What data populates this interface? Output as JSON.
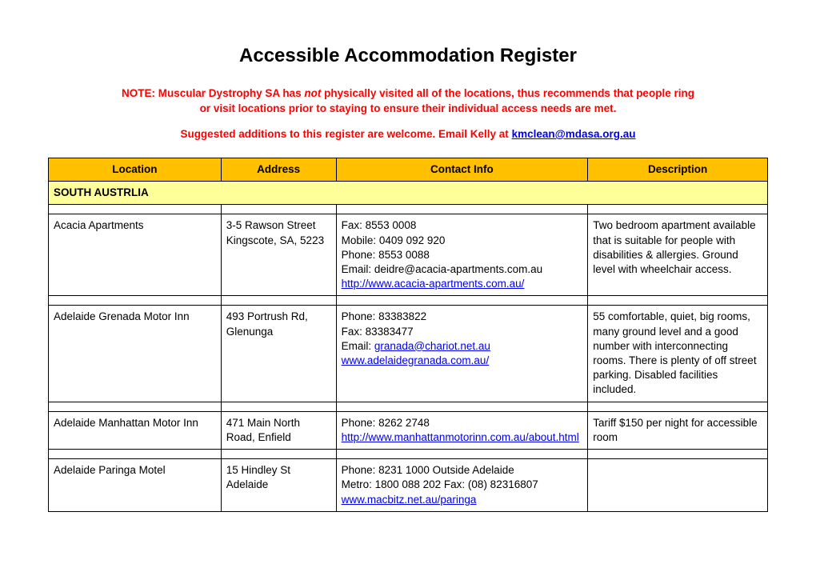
{
  "title": "Accessible Accommodation Register",
  "note_line1": "NOTE: Muscular Dystrophy SA has ",
  "note_not": "not",
  "note_line1b": " physically visited all of the locations, thus recommends that people ring",
  "note_line2": "or visit locations prior to staying to ensure their individual access needs are met.",
  "suggest_prefix": "Suggested additions to this register are welcome. Email Kelly at ",
  "suggest_email": "kmclean@mdasa.org.au",
  "columns": {
    "location": "Location",
    "address": "Address",
    "contact": "Contact Info",
    "description": "Description"
  },
  "region": "SOUTH AUSTRLIA",
  "rows": [
    {
      "location": "Acacia Apartments",
      "address": "3-5 Rawson Street Kingscote, SA, 5223",
      "contact_lines": [
        "Fax: 8553 0008",
        "Mobile: 0409 092 920",
        "Phone: 8553 0088",
        "Email: deidre@acacia-apartments.com.au"
      ],
      "contact_link": "http://www.acacia-apartments.com.au/",
      "description": "Two bedroom apartment available that is suitable for people with disabilities & allergies. Ground level with wheelchair access."
    },
    {
      "location": "Adelaide Grenada Motor Inn",
      "address": "493 Portrush Rd, Glenunga",
      "contact_lines": [
        "Phone: 83383822",
        "Fax: 83383477"
      ],
      "contact_email_prefix": "Email: ",
      "contact_email": "granada@chariot.net.au",
      "contact_link": "www.adelaidegranada.com.au/",
      "description": "55 comfortable, quiet, big rooms, many ground level and a good number with interconnecting rooms. There is plenty of off street parking. Disabled facilities included."
    },
    {
      "location": "Adelaide Manhattan Motor Inn",
      "address": "471 Main North Road, Enfield",
      "contact_lines": [
        "Phone: 8262 2748"
      ],
      "contact_link": "http://www.manhattanmotorinn.com.au/about.html",
      "description": "Tariff $150 per night for accessible room"
    },
    {
      "location": "Adelaide Paringa Motel",
      "address": "15 Hindley St Adelaide",
      "contact_lines": [
        "Phone: 8231 1000 Outside Adelaide",
        "Metro: 1800 088 202 Fax: (08) 82316807"
      ],
      "contact_link": "www.macbitz.net.au/paringa",
      "description": ""
    }
  ]
}
